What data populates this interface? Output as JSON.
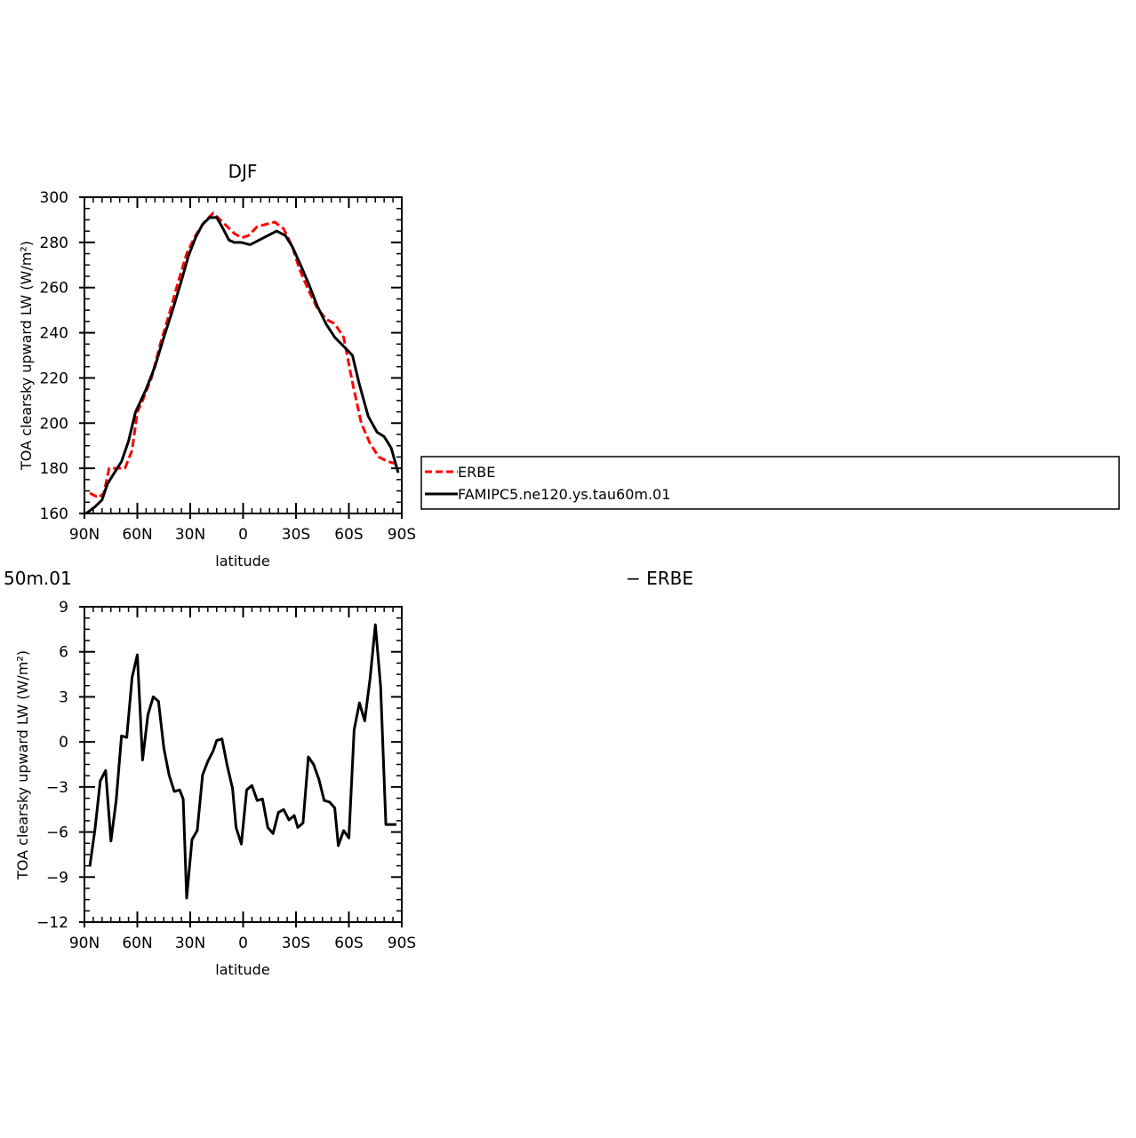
{
  "chart_data": [
    {
      "type": "line",
      "title": "DJF",
      "xlabel": "latitude",
      "ylabel": "TOA clearsky upward LW (W/m²)",
      "xlim": [
        -90,
        90
      ],
      "ylim": [
        160,
        300
      ],
      "x_ticks": [
        -90,
        -60,
        -30,
        0,
        30,
        60,
        90
      ],
      "x_tick_labels": [
        "90N",
        "60N",
        "30N",
        "0",
        "30S",
        "60S",
        "90S"
      ],
      "y_ticks": [
        160,
        180,
        200,
        220,
        240,
        260,
        280,
        300
      ],
      "y_tick_labels": [
        "160",
        "180",
        "200",
        "220",
        "240",
        "260",
        "280",
        "300"
      ],
      "grid": false,
      "legend": {
        "placement": "right",
        "entries": [
          {
            "label": "ERBE",
            "color": "#ff0000",
            "dash": "dashed"
          },
          {
            "label": "FAMIPC5.ne120.ys.tau60m.01",
            "color": "#000000",
            "dash": "solid"
          }
        ]
      },
      "series": [
        {
          "name": "ERBE",
          "color": "#ff0000",
          "dash": "dashed",
          "x": [
            -87,
            -82,
            -79,
            -76,
            -72,
            -67,
            -63,
            -60,
            -57,
            -52,
            -47,
            -42,
            -37,
            -32,
            -27,
            -22,
            -17,
            -13,
            -9,
            -5,
            -1,
            3,
            8,
            13,
            18,
            23,
            28,
            32,
            37,
            42,
            47,
            52,
            57,
            62,
            67,
            72,
            77,
            82,
            87
          ],
          "y": [
            169,
            167,
            169,
            180,
            180,
            180,
            188,
            205,
            210,
            220,
            235,
            248,
            262,
            275,
            283,
            289,
            293,
            290,
            287,
            284,
            282,
            283,
            287,
            288,
            289,
            286,
            278,
            268,
            259,
            251,
            246,
            244,
            238,
            218,
            200,
            191,
            185,
            183,
            182
          ]
        },
        {
          "name": "FAMIPC5.ne120.ys.tau60m.01",
          "color": "#000000",
          "dash": "solid",
          "x": [
            -89,
            -84,
            -80,
            -77,
            -73,
            -69,
            -65,
            -61,
            -58,
            -55,
            -50,
            -45,
            -40,
            -35,
            -31,
            -27,
            -23,
            -19,
            -15,
            -12,
            -8,
            -5,
            -1,
            4,
            9,
            14,
            19,
            24,
            28,
            32,
            37,
            42,
            47,
            52,
            57,
            62,
            66,
            71,
            76,
            80,
            84,
            88
          ],
          "y": [
            160,
            163,
            166,
            173,
            178,
            183,
            192,
            205,
            210,
            215,
            225,
            238,
            250,
            263,
            274,
            282,
            288,
            291,
            291,
            287,
            281,
            280,
            280,
            279,
            281,
            283,
            285,
            283,
            278,
            271,
            262,
            252,
            244,
            238,
            234,
            230,
            217,
            203,
            196,
            194,
            189,
            178
          ]
        }
      ]
    },
    {
      "type": "line",
      "title": "50m.01",
      "title_right": "− ERBE",
      "xlabel": "latitude",
      "ylabel": "TOA clearsky upward LW (W/m²)",
      "xlim": [
        -90,
        90
      ],
      "ylim": [
        -12,
        9
      ],
      "x_ticks": [
        -90,
        -60,
        -30,
        0,
        30,
        60,
        90
      ],
      "x_tick_labels": [
        "90N",
        "60N",
        "30N",
        "0",
        "30S",
        "60S",
        "90S"
      ],
      "y_ticks": [
        -12,
        -9,
        -6,
        -3,
        0,
        3,
        6,
        9
      ],
      "y_tick_labels": [
        "−12",
        "−9",
        "−6",
        "−3",
        "0",
        "3",
        "6",
        "9"
      ],
      "grid": false,
      "series": [
        {
          "color": "#000000",
          "dash": "solid",
          "x": [
            -87,
            -84,
            -81,
            -78,
            -75,
            -72,
            -69,
            -66,
            -63,
            -60,
            -57,
            -54,
            -51,
            -48,
            -45,
            -42,
            -39,
            -36,
            -34,
            -32,
            -29,
            -26,
            -23,
            -20,
            -17,
            -15,
            -12,
            -9,
            -6,
            -4,
            -1,
            2,
            5,
            8,
            11,
            14,
            17,
            20,
            23,
            26,
            29,
            31,
            34,
            37,
            40,
            43,
            46,
            49,
            52,
            54,
            57,
            60,
            63,
            66,
            69,
            72,
            75,
            78,
            81,
            84,
            87
          ],
          "y": [
            -8.3,
            -5.8,
            -2.6,
            -1.9,
            -6.6,
            -3.9,
            0.4,
            0.3,
            4.3,
            5.8,
            -1.2,
            1.8,
            3.0,
            2.7,
            -0.4,
            -2.2,
            -3.3,
            -3.2,
            -3.8,
            -10.4,
            -6.5,
            -5.9,
            -2.2,
            -1.3,
            -0.6,
            0.1,
            0.2,
            -1.6,
            -3.1,
            -5.7,
            -6.8,
            -3.2,
            -2.9,
            -3.9,
            -3.8,
            -5.7,
            -6.1,
            -4.7,
            -4.5,
            -5.2,
            -4.9,
            -5.7,
            -5.4,
            -1.0,
            -1.5,
            -2.5,
            -3.9,
            -4.0,
            -4.4,
            -6.9,
            -5.9,
            -6.4,
            0.8,
            2.6,
            1.4,
            4.2,
            7.8,
            3.7,
            -5.5,
            -5.5,
            -5.5
          ]
        }
      ]
    }
  ]
}
